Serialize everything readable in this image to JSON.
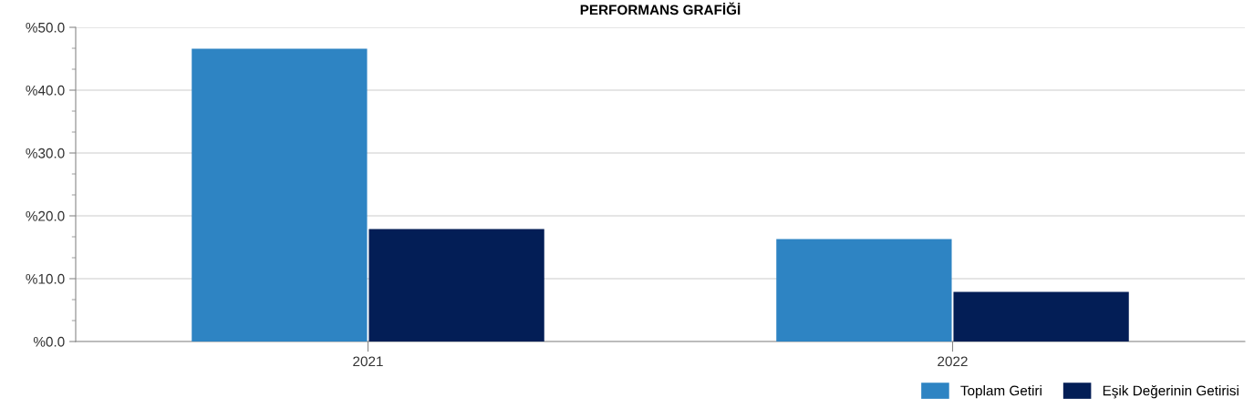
{
  "chart_data": {
    "type": "bar",
    "title": "PERFORMANS GRAFİĞİ",
    "categories": [
      "2021",
      "2022"
    ],
    "series": [
      {
        "name": "Toplam Getiri",
        "color": "#2e84c3",
        "values": [
          46.6,
          16.3
        ]
      },
      {
        "name": "Eşik Değerinin Getirisi",
        "color": "#031e56",
        "values": [
          17.9,
          7.9
        ]
      }
    ],
    "ylim": [
      0,
      50
    ],
    "yticks": [
      {
        "value": 0,
        "label": "%0.0"
      },
      {
        "value": 10,
        "label": "%10.0"
      },
      {
        "value": 20,
        "label": "%20.0"
      },
      {
        "value": 30,
        "label": "%30.0"
      },
      {
        "value": 40,
        "label": "%40.0"
      },
      {
        "value": 50,
        "label": "%50.0"
      }
    ],
    "grid": "y",
    "legend": "bottom right"
  }
}
